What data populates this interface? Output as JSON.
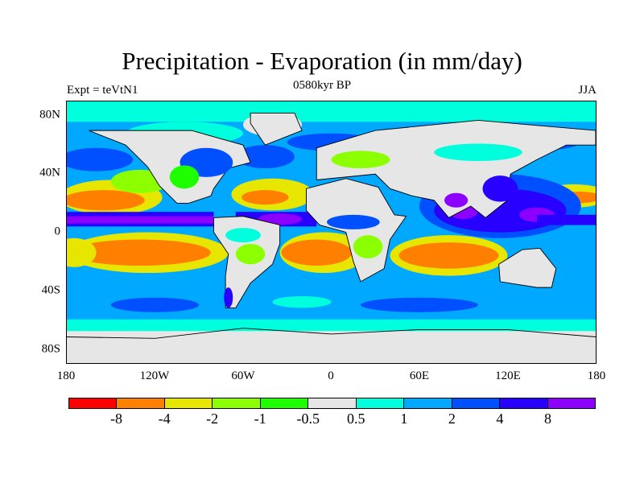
{
  "title": "Precipitation - Evaporation (in mm/day)",
  "subtitle_left": "Expt = teVtN1",
  "subtitle_center": "0580kyr BP",
  "subtitle_right": "JJA",
  "lat_labels": [
    "80N",
    "40N",
    "0",
    "40S",
    "80S"
  ],
  "lon_labels": [
    "180",
    "120W",
    "60W",
    "0",
    "60E",
    "120E",
    "180"
  ],
  "colorbar": {
    "levels": [
      "-8",
      "-4",
      "-2",
      "-1",
      "-0.5",
      "0.5",
      "1",
      "2",
      "4",
      "8"
    ],
    "colors": [
      "#ff0000",
      "#ff8000",
      "#e6e600",
      "#8cff00",
      "#1eff00",
      "#e6e6e6",
      "#00ffdc",
      "#00a8ff",
      "#0050ff",
      "#2800ff",
      "#8c00ff"
    ]
  }
}
